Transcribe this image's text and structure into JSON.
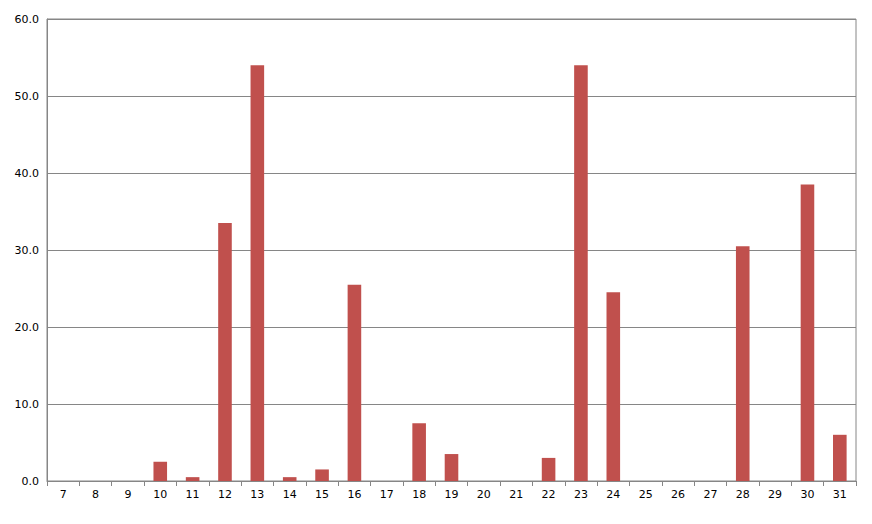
{
  "chart_data": {
    "type": "bar",
    "categories": [
      "7",
      "8",
      "9",
      "10",
      "11",
      "12",
      "13",
      "14",
      "15",
      "16",
      "17",
      "18",
      "19",
      "20",
      "21",
      "22",
      "23",
      "24",
      "25",
      "26",
      "27",
      "28",
      "29",
      "30",
      "31"
    ],
    "values": [
      0,
      0,
      0,
      2.5,
      0.5,
      33.5,
      54.0,
      0.5,
      1.5,
      25.5,
      0,
      7.5,
      3.5,
      0,
      0,
      3.0,
      54.0,
      24.5,
      0,
      0,
      0,
      30.5,
      0,
      38.5,
      6.0
    ],
    "color": "#c0504d",
    "ylim": [
      0,
      60
    ],
    "yticks": [
      {
        "value": 0,
        "label": "0.0"
      },
      {
        "value": 10,
        "label": "10.0"
      },
      {
        "value": 20,
        "label": "20.0"
      },
      {
        "value": 30,
        "label": "30.0"
      },
      {
        "value": 40,
        "label": "40.0"
      },
      {
        "value": 50,
        "label": "50.0"
      },
      {
        "value": 60,
        "label": "60.0"
      }
    ],
    "grid": true
  }
}
